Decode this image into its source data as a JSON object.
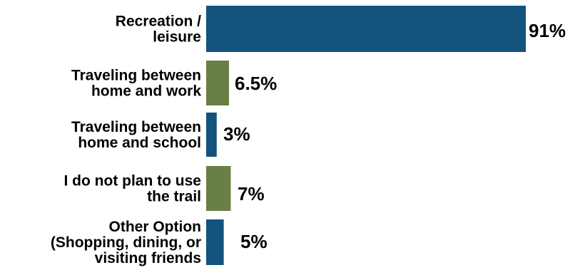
{
  "chart_data": {
    "type": "bar",
    "orientation": "horizontal",
    "categories": [
      [
        "Recreation /",
        "leisure"
      ],
      [
        "Traveling between",
        "home and work"
      ],
      [
        "Traveling between",
        "home and school"
      ],
      [
        "I do not plan to use",
        "the trail"
      ],
      [
        "Other Option",
        "(Shopping, dining, or",
        "visiting friends"
      ]
    ],
    "values": [
      91,
      6.5,
      3,
      7,
      5
    ],
    "value_labels": [
      "91%",
      "6.5%",
      "3%",
      "7%",
      "5%"
    ],
    "bar_colors": [
      "#13527b",
      "#6a7f45",
      "#13527b",
      "#6a7f45",
      "#13527b"
    ],
    "title": "",
    "xlabel": "",
    "ylabel": "",
    "xlim": [
      0,
      100
    ],
    "grid": false,
    "legend": "none"
  }
}
